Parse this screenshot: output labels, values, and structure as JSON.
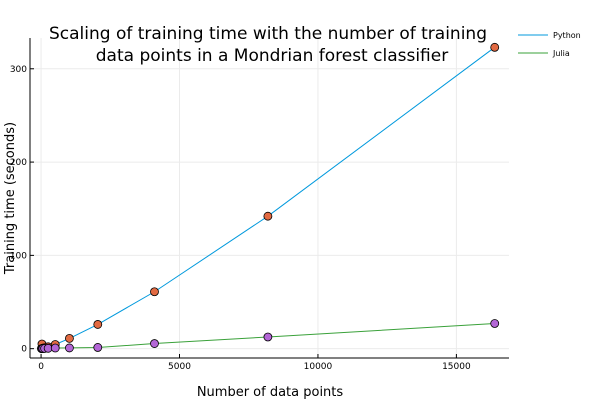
{
  "chart_data": {
    "type": "line",
    "title_lines": [
      "Scaling of training time with the number of training",
      "data points in a Mondrian forest classifier"
    ],
    "xlabel": "Number of data points",
    "ylabel": "Training time (seconds)",
    "xlim": [
      -400,
      16900
    ],
    "ylim": [
      -10,
      333
    ],
    "x_ticks": [
      0,
      5000,
      10000,
      15000
    ],
    "x_tick_labels": [
      "0",
      "5000",
      "10000",
      "15000"
    ],
    "y_ticks": [
      0,
      100,
      200,
      300
    ],
    "y_tick_labels": [
      "0",
      "100",
      "200",
      "300"
    ],
    "grid": true,
    "legend_position": "top-right",
    "x": [
      16,
      32,
      64,
      128,
      256,
      512,
      1024,
      2048,
      4096,
      8192,
      16384
    ],
    "series": [
      {
        "name": "Python",
        "line_color": "#0099dd",
        "marker_color": "#e26a42",
        "values": [
          0.3,
          5.0,
          0.6,
          1.0,
          2.0,
          4.5,
          11.0,
          26.0,
          61.0,
          142.0,
          323.0
        ]
      },
      {
        "name": "Julia",
        "line_color": "#3aa13a",
        "marker_color": "#b366d6",
        "values": [
          0.05,
          0.1,
          0.15,
          0.25,
          0.4,
          0.7,
          0.8,
          1.3,
          5.5,
          12.5,
          27.0
        ]
      }
    ]
  }
}
